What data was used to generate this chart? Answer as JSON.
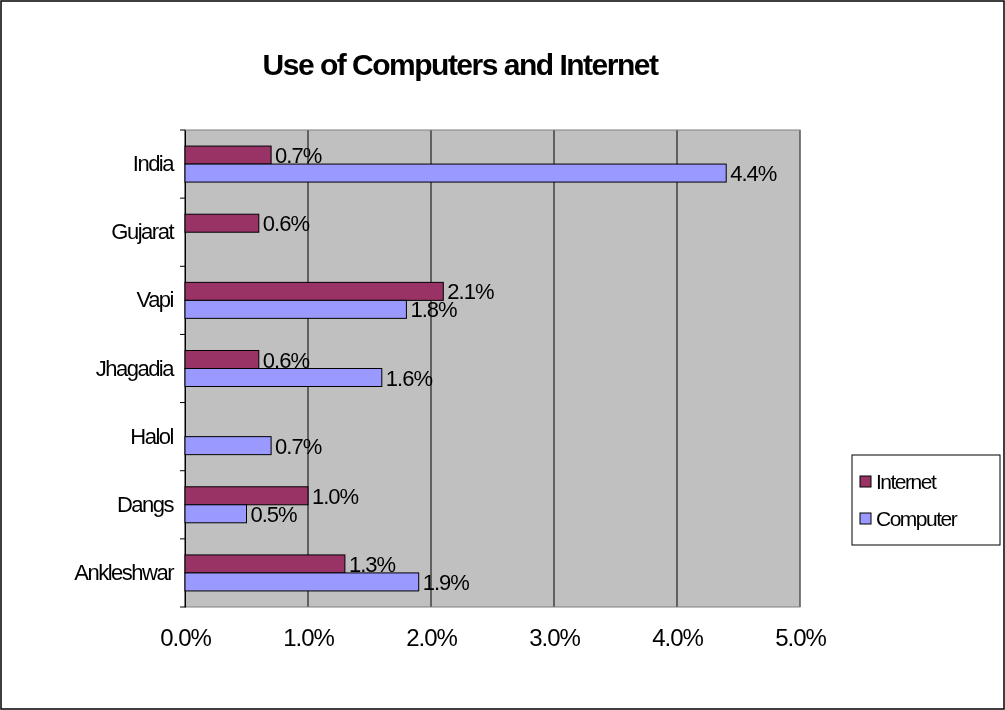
{
  "chart_data": {
    "type": "bar",
    "orientation": "horizontal",
    "title": "Use of Computers and Internet",
    "categories": [
      "India",
      "Gujarat",
      "Vapi",
      "Jhagadia",
      "Halol",
      "Dangs",
      "Ankleshwar"
    ],
    "series": [
      {
        "name": "Internet",
        "color": "#993366",
        "values": [
          0.7,
          0.6,
          2.1,
          0.6,
          null,
          1.0,
          1.3
        ],
        "value_labels": [
          "0.7%",
          "0.6%",
          "2.1%",
          "0.6%",
          null,
          "1.0%",
          "1.3%"
        ]
      },
      {
        "name": "Computer",
        "color": "#9999ff",
        "values": [
          4.4,
          null,
          1.8,
          1.6,
          0.7,
          0.5,
          1.9
        ],
        "value_labels": [
          "4.4%",
          null,
          "1.8%",
          "1.6%",
          "0.7%",
          "0.5%",
          "1.9%"
        ]
      }
    ],
    "xlim": [
      0,
      5
    ],
    "xticks": [
      {
        "value": 0,
        "label": "0.0%"
      },
      {
        "value": 1,
        "label": "1.0%"
      },
      {
        "value": 2,
        "label": "2.0%"
      },
      {
        "value": 3,
        "label": "3.0%"
      },
      {
        "value": 4,
        "label": "4.0%"
      },
      {
        "value": 5,
        "label": "5.0%"
      }
    ],
    "grid": "x",
    "legend": "right"
  }
}
